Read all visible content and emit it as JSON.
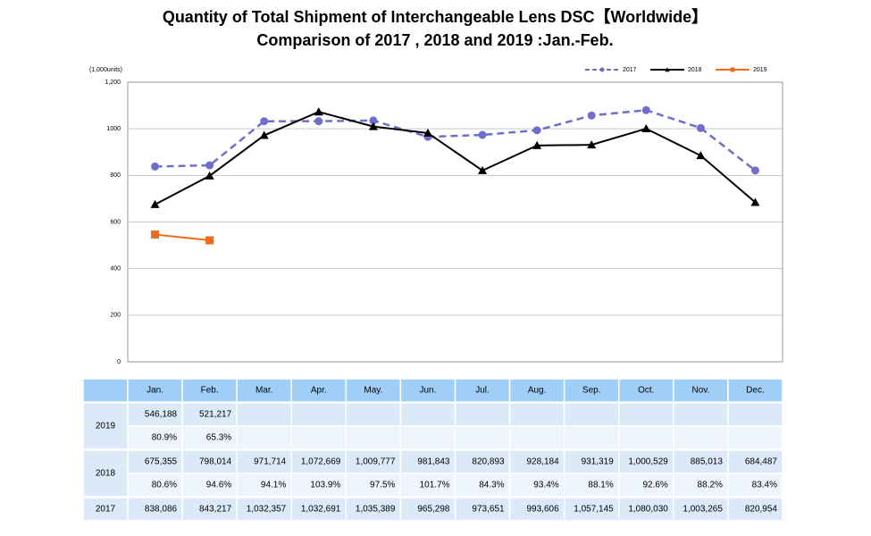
{
  "chart_data": {
    "type": "line",
    "title": [
      "Quantity of Total Shipment of Interchangeable Lens DSC【Worldwide】",
      "Comparison of 2017 , 2018 and 2019 :Jan.-Feb."
    ],
    "y_label": "(1,000units)",
    "categories": [
      "Jan.",
      "Feb.",
      "Mar.",
      "Apr.",
      "May.",
      "Jun.",
      "Jul.",
      "Aug.",
      "Sep.",
      "Oct.",
      "Nov.",
      "Dec."
    ],
    "ylim": [
      0,
      1200
    ],
    "yticks": [
      0,
      200,
      400,
      600,
      800,
      1000,
      {
        "value": 1200,
        "label": "1,200"
      }
    ],
    "grid": true,
    "legend": "top-right",
    "series": [
      {
        "name": "2017",
        "color": "#6f6fcb",
        "dashed": true,
        "marker": "circle",
        "values": [
          838.086,
          843.217,
          1032.357,
          1032.691,
          1035.389,
          965.298,
          973.651,
          993.606,
          1057.145,
          1080.03,
          1003.265,
          820.954
        ],
        "value_labels": [
          "838,086",
          "843,217",
          "1,032,357",
          "1,032,691",
          "1,035,389",
          "965,298",
          "973,651",
          "993,606",
          "1,057,145",
          "1,080,030",
          "1,003,265",
          "820,954"
        ]
      },
      {
        "name": "2018",
        "color": "#000000",
        "dashed": false,
        "marker": "triangle",
        "values": [
          675.355,
          798.014,
          971.714,
          1072.669,
          1009.777,
          981.843,
          820.893,
          928.184,
          931.319,
          1000.529,
          885.013,
          684.487
        ],
        "value_labels": [
          "675,355",
          "798,014",
          "971,714",
          "1,072,669",
          "1,009,777",
          "981,843",
          "820,893",
          "928,184",
          "931,319",
          "1,000,529",
          "885,013",
          "684,487"
        ],
        "ratio_labels": [
          "80.6%",
          "94.6%",
          "94.1%",
          "103.9%",
          "97.5%",
          "101.7%",
          "84.3%",
          "93.4%",
          "88.1%",
          "92.6%",
          "88.2%",
          "83.4%"
        ]
      },
      {
        "name": "2019",
        "color": "#f26b1d",
        "dashed": false,
        "marker": "square",
        "values": [
          546.188,
          521.217,
          null,
          null,
          null,
          null,
          null,
          null,
          null,
          null,
          null,
          null
        ],
        "value_labels": [
          "546,188",
          "521,217",
          null,
          null,
          null,
          null,
          null,
          null,
          null,
          null,
          null,
          null
        ],
        "ratio_labels": [
          "80.9%",
          "65.3%",
          null,
          null,
          null,
          null,
          null,
          null,
          null,
          null,
          null,
          null
        ]
      }
    ]
  }
}
